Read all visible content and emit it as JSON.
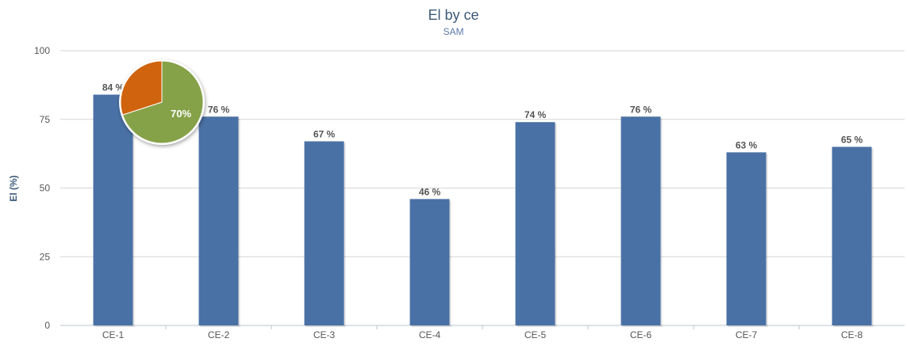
{
  "chart_data": {
    "type": "bar",
    "title": "El by ce",
    "subtitle": "SAM",
    "xlabel": "",
    "ylabel": "El (%)",
    "ylim": [
      0,
      100
    ],
    "yticks": [
      0,
      25,
      50,
      75,
      100
    ],
    "grid": true,
    "legend": "none",
    "categories": [
      "CE-1",
      "CE-2",
      "CE-3",
      "CE-4",
      "CE-5",
      "CE-6",
      "CE-7",
      "CE-8"
    ],
    "values": [
      84,
      76,
      67,
      46,
      74,
      76,
      63,
      65
    ],
    "data_labels": [
      "84 %",
      "76 %",
      "67 %",
      "46 %",
      "74 %",
      "76 %",
      "63 %",
      "65 %"
    ],
    "bar_color": "#4a71a5",
    "inset_pie": {
      "label": "70%",
      "slices": [
        {
          "value": 70,
          "color": "#85a24a"
        },
        {
          "value": 30,
          "color": "#d0630f"
        }
      ]
    }
  }
}
